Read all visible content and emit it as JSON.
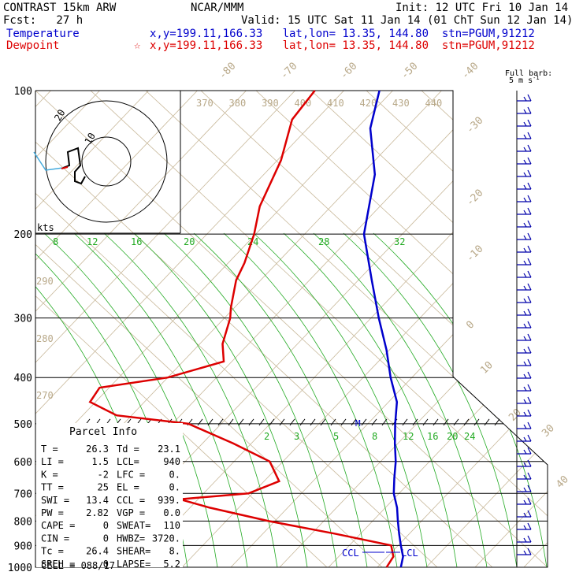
{
  "header": {
    "title": "CONTRAST 15km ARW",
    "fcst": "Fcst:   27 h",
    "source": "NCAR/MMM",
    "init": "Init: 12 UTC Fri 10 Jan 14",
    "valid": "Valid: 15 UTC Sat 11 Jan 14 (01 ChT Sun 12 Jan 14)",
    "temperature_label": "Temperature",
    "temperature_info": "x,y=199.11,166.33   lat,lon= 13.35, 144.80  stn=PGUM,91212",
    "dewpoint_label": "Dewpoint",
    "dewpoint_star": "☆",
    "dewpoint_info": "x,y=199.11,166.33   lat,lon= 13.35, 144.80  stn=PGUM,91212",
    "colors": {
      "temperature": "#0000cc",
      "dewpoint": "#dd0000"
    }
  },
  "chart_data": {
    "type": "line",
    "diagram": "skew-T log-p",
    "y_axis_pressure_ticks": [
      "100",
      "200",
      "300",
      "400",
      "500",
      "600",
      "700",
      "800",
      "900",
      "1000"
    ],
    "theta_e_labels": [
      "370",
      "380",
      "390",
      "400",
      "410",
      "420",
      "430",
      "440"
    ],
    "isotherm_labels": [
      "-80",
      "-70",
      "-60",
      "-50",
      "-40",
      "-30",
      "-20",
      "-10",
      "0",
      "10",
      "20",
      "30",
      "40"
    ],
    "mixing_ratio_labels": [
      "8",
      "12",
      "16",
      "20",
      "24",
      "28",
      "32"
    ],
    "mixing_ratio_labels_low": [
      "2",
      "3",
      "5",
      "8",
      "12",
      "16",
      "20",
      "24"
    ],
    "dry_adiabat_labels": [
      "290",
      "280",
      "270"
    ],
    "series": [
      {
        "name": "Temperature",
        "color": "#0000cc",
        "points": [
          [
            100,
            -78
          ],
          [
            120,
            -73
          ],
          [
            150,
            -62
          ],
          [
            200,
            -53
          ],
          [
            250,
            -41
          ],
          [
            300,
            -31
          ],
          [
            350,
            -22
          ],
          [
            400,
            -15
          ],
          [
            450,
            -8
          ],
          [
            500,
            -4
          ],
          [
            550,
            0
          ],
          [
            600,
            4
          ],
          [
            650,
            7
          ],
          [
            700,
            10
          ],
          [
            750,
            14
          ],
          [
            800,
            17
          ],
          [
            850,
            20
          ],
          [
            900,
            23
          ],
          [
            925,
            24.5
          ],
          [
            950,
            26
          ],
          [
            1000,
            27.5
          ]
        ]
      },
      {
        "name": "Dewpoint",
        "color": "#dd0000",
        "points": [
          [
            100,
            -98
          ],
          [
            115,
            -99
          ],
          [
            140,
            -94
          ],
          [
            175,
            -91
          ],
          [
            200,
            -87
          ],
          [
            230,
            -84
          ],
          [
            250,
            -83
          ],
          [
            285,
            -79
          ],
          [
            300,
            -77
          ],
          [
            340,
            -74
          ],
          [
            370,
            -70
          ],
          [
            400,
            -84
          ],
          [
            420,
            -103
          ],
          [
            450,
            -103
          ],
          [
            480,
            -92
          ],
          [
            500,
            -68
          ],
          [
            550,
            -50
          ],
          [
            600,
            -35
          ],
          [
            660,
            -28
          ],
          [
            700,
            -35
          ],
          [
            720,
            -55
          ],
          [
            750,
            -44
          ],
          [
            800,
            -23
          ],
          [
            850,
            0
          ],
          [
            900,
            20
          ],
          [
            950,
            23
          ],
          [
            1000,
            23.1
          ]
        ]
      }
    ],
    "markers": {
      "m_label": "M",
      "ccl": "CCL",
      "lcl": "LCL"
    },
    "hodograph": {
      "unit_label": "kts",
      "ring_labels": [
        "20",
        "10"
      ]
    },
    "wind_barb_title": "Full barb:",
    "wind_barb_unit": "5 m s",
    "wind_barb_unit_sup": "-1"
  },
  "parcel_info": {
    "title": "Parcel Info",
    "rows": [
      [
        "T  =",
        "26.3",
        "Td =",
        "23.1"
      ],
      [
        "LI =",
        "1.5",
        "LCL=",
        "940"
      ],
      [
        "K  =",
        "-2",
        "LFC =",
        "0."
      ],
      [
        "TT =",
        "25",
        "EL  =",
        "0."
      ],
      [
        "SWI =",
        "13.4",
        "CCL =",
        "939."
      ],
      [
        "PW =",
        "2.82",
        "VGP =",
        "0.0"
      ],
      [
        "CAPE =",
        "0",
        "SWEAT=",
        "110"
      ],
      [
        "CIN =",
        "0",
        "HWBZ=",
        "3720."
      ],
      [
        "Tc =",
        "26.4",
        "SHEAR=",
        "8."
      ],
      [
        "SREH =",
        "0",
        "LAPSE=",
        "5.2"
      ]
    ],
    "cell": "CELL = 088/17"
  }
}
